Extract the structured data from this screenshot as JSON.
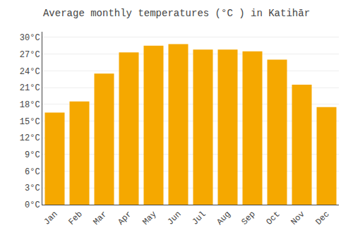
{
  "chart_data": {
    "type": "bar",
    "title": "Average monthly temperatures (°C ) in Katihār",
    "categories": [
      "Jan",
      "Feb",
      "Mar",
      "Apr",
      "May",
      "Jun",
      "Jul",
      "Aug",
      "Sep",
      "Oct",
      "Nov",
      "Dec"
    ],
    "values": [
      16.5,
      18.5,
      23.5,
      27.3,
      28.5,
      28.8,
      27.8,
      27.8,
      27.5,
      26.0,
      21.5,
      17.5
    ],
    "color": "#F5A800",
    "ylim": [
      0,
      31
    ],
    "yticks": [
      {
        "value": 0,
        "label": "0°C"
      },
      {
        "value": 3,
        "label": "3°C"
      },
      {
        "value": 6,
        "label": "6°C"
      },
      {
        "value": 9,
        "label": "9°C"
      },
      {
        "value": 12,
        "label": "12°C"
      },
      {
        "value": 15,
        "label": "15°C"
      },
      {
        "value": 18,
        "label": "18°C"
      },
      {
        "value": 21,
        "label": "21°C"
      },
      {
        "value": 24,
        "label": "24°C"
      },
      {
        "value": 27,
        "label": "27°C"
      },
      {
        "value": 30,
        "label": "30°C"
      }
    ],
    "grid": true
  }
}
